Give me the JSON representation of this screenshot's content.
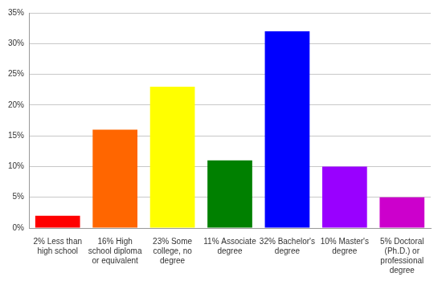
{
  "chart_data": {
    "type": "bar",
    "categories": [
      "2% Less than high school",
      "16% High school diploma or equivalent",
      "23% Some college, no degree",
      "11% Associate degree",
      "32% Bachelor's degree",
      "10% Master's degree",
      "5% Doctoral (Ph.D.) or professional degree"
    ],
    "values": [
      2,
      16,
      23,
      11,
      32,
      10,
      5
    ],
    "colors": [
      "#ff0000",
      "#ff6600",
      "#ffff00",
      "#008000",
      "#0000ff",
      "#9900ff",
      "#cc00cc"
    ],
    "ylim": [
      0,
      35
    ],
    "yticks": [
      {
        "value": 0,
        "label": "0%"
      },
      {
        "value": 5,
        "label": "5%"
      },
      {
        "value": 10,
        "label": "10%"
      },
      {
        "value": 15,
        "label": "15%"
      },
      {
        "value": 20,
        "label": "20%"
      },
      {
        "value": 25,
        "label": "25%"
      },
      {
        "value": 30,
        "label": "30%"
      },
      {
        "value": 35,
        "label": "35%"
      }
    ],
    "grid": true
  }
}
